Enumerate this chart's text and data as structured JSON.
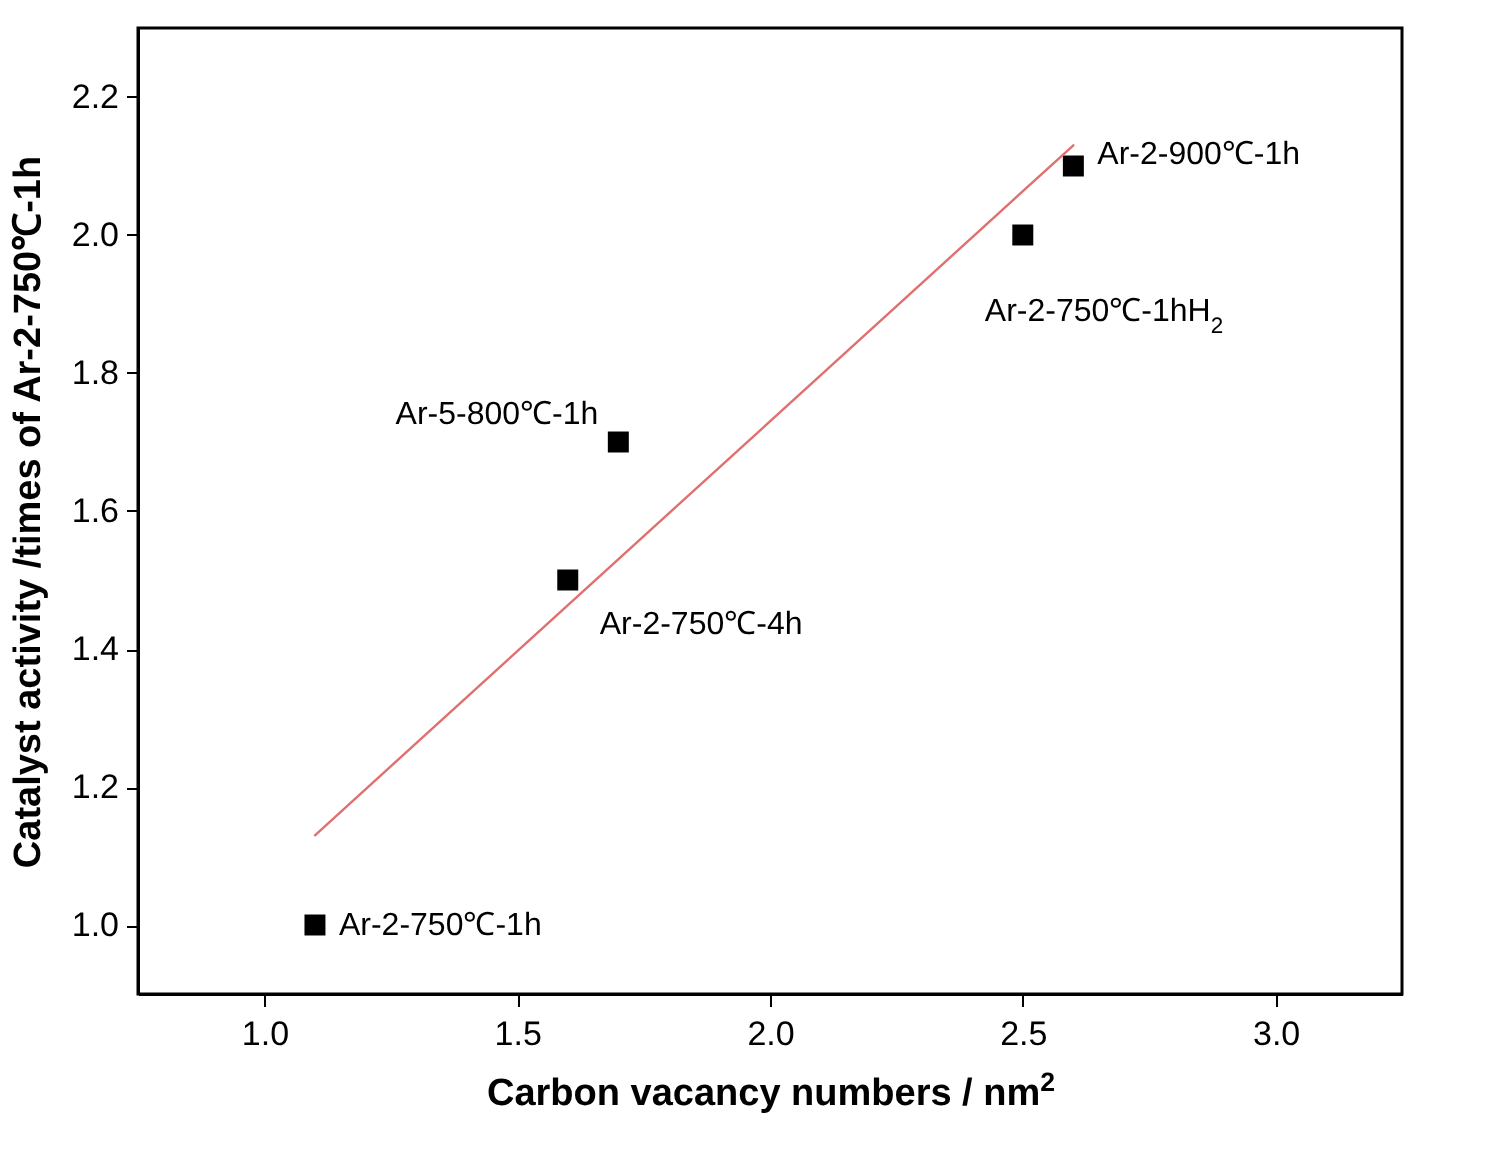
{
  "chart_data": {
    "type": "scatter",
    "xlabel": "Carbon vacancy numbers /  nm$^{2}$",
    "ylabel": "Catalyst activity /times of Ar-2-750℃-1h",
    "xlim": [
      0.75,
      3.25
    ],
    "ylim": [
      0.9,
      2.3
    ],
    "xticks": [
      {
        "value": 1,
        "label": "1.0"
      },
      {
        "value": 1.5,
        "label": "1.5"
      },
      {
        "value": 2,
        "label": "2.0"
      },
      {
        "value": 2.5,
        "label": "2.5"
      },
      {
        "value": 3,
        "label": "3.0"
      }
    ],
    "yticks": [
      {
        "value": 1,
        "label": "1.0"
      },
      {
        "value": 1.2,
        "label": "1.2"
      },
      {
        "value": 1.4,
        "label": "1.4"
      },
      {
        "value": 1.6,
        "label": "1.6"
      },
      {
        "value": 1.8,
        "label": "1.8"
      },
      {
        "value": 2,
        "label": "2.0"
      },
      {
        "value": 2.2,
        "label": "2.2"
      }
    ],
    "grid": false,
    "series": [
      {
        "marker": "square",
        "color": "#000000",
        "x": [
          1.1,
          1.6,
          1.7,
          2.5,
          2.6
        ],
        "values": [
          1.0,
          1.5,
          1.7,
          2.0,
          2.1
        ]
      },
      {
        "type": "line",
        "color": "#e07070",
        "x": [
          1.1,
          2.6
        ],
        "values": [
          1.13,
          2.13
        ]
      }
    ],
    "annotations": [
      {
        "text": "Ar-2-750℃-1h",
        "x": 1.1,
        "y": 1.0
      },
      {
        "text": "Ar-2-750℃-4h",
        "x": 1.6,
        "y": 1.5
      },
      {
        "text": "Ar-5-800℃-1h",
        "x": 1.7,
        "y": 1.7
      },
      {
        "text": "Ar-2-750℃-1hH$_{2}$",
        "x": 2.5,
        "y": 2.0
      },
      {
        "text": "Ar-2-900℃-1h",
        "x": 2.6,
        "y": 2.1
      }
    ]
  }
}
